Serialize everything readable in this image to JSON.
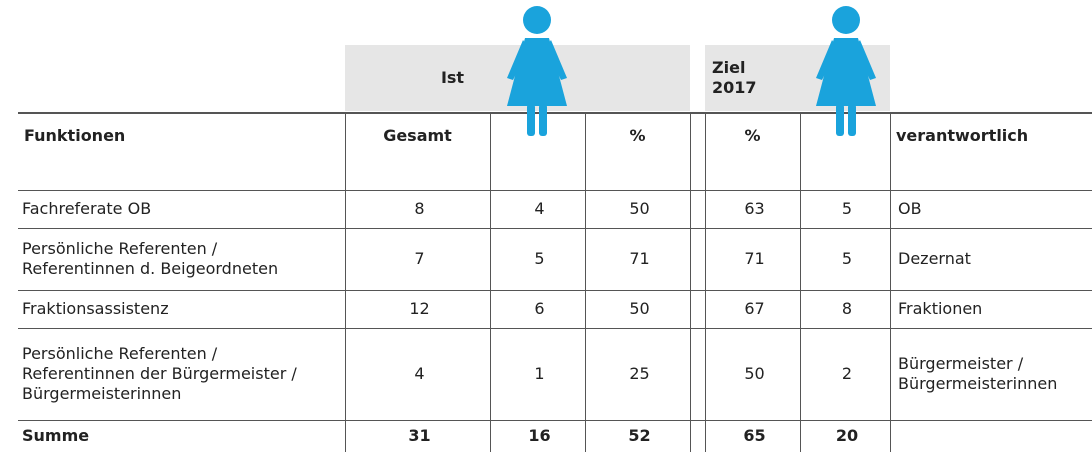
{
  "header": {
    "ist": "Ist",
    "ziel": "Ziel\n2017"
  },
  "table": {
    "columns": [
      "Funktionen",
      "Gesamt",
      "%",
      "%",
      "verantwortlich"
    ],
    "rows": [
      [
        "Fachreferate OB",
        8,
        4,
        50,
        63,
        5,
        "OB"
      ],
      [
        "Persönliche Referenten /\nReferentinnen d. Beigeordneten",
        7,
        5,
        71,
        71,
        5,
        "Dezernat"
      ],
      [
        "Fraktionsassistenz",
        12,
        6,
        50,
        67,
        8,
        "Fraktionen"
      ],
      [
        "Persönliche Referenten /\nReferentinnen der Bürgermeister /\nBürgermeisterinnen",
        4,
        1,
        25,
        50,
        2,
        "Bürgermeister /\nBürgermeisterinnen"
      ],
      [
        "Summe",
        31,
        16,
        52,
        65,
        20
      ]
    ]
  }
}
